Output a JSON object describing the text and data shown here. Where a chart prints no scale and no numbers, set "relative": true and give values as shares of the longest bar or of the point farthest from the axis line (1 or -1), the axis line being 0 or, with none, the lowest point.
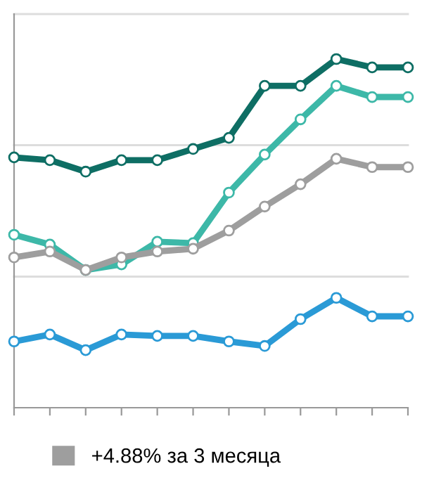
{
  "chart_data": {
    "type": "line",
    "relative": true,
    "categories": [
      null,
      null,
      null,
      null,
      null,
      null,
      null,
      null,
      null,
      null,
      null,
      null
    ],
    "series": [
      {
        "color": "#0e6e64",
        "values": [
          0.718,
          0.71,
          0.677,
          0.71,
          0.71,
          0.742,
          0.774,
          0.923,
          0.923,
          1.0,
          0.976,
          0.976
        ]
      },
      {
        "color": "#3db8a8",
        "values": [
          0.496,
          0.468,
          0.395,
          0.411,
          0.476,
          0.472,
          0.617,
          0.726,
          0.827,
          0.923,
          0.891,
          0.891
        ]
      },
      {
        "name": "+4.88% за 3 месяца",
        "color": "#9e9e9e",
        "values": [
          0.431,
          0.448,
          0.395,
          0.431,
          0.448,
          0.456,
          0.508,
          0.577,
          0.641,
          0.714,
          0.69,
          0.69
        ]
      },
      {
        "color": "#2a9ad6",
        "values": [
          0.19,
          0.21,
          0.165,
          0.21,
          0.206,
          0.206,
          0.19,
          0.177,
          0.254,
          0.315,
          0.262,
          0.262
        ]
      }
    ],
    "ref_lines": [
      {
        "axis": "y",
        "value": 0.376,
        "color": "#dddddd"
      },
      {
        "axis": "y",
        "value": 0.753,
        "color": "#dddddd"
      },
      {
        "axis": "y",
        "value": 1.129,
        "color": "#dddddd"
      }
    ],
    "marker": "circle",
    "line_style": "solid",
    "legend": "bottom"
  }
}
